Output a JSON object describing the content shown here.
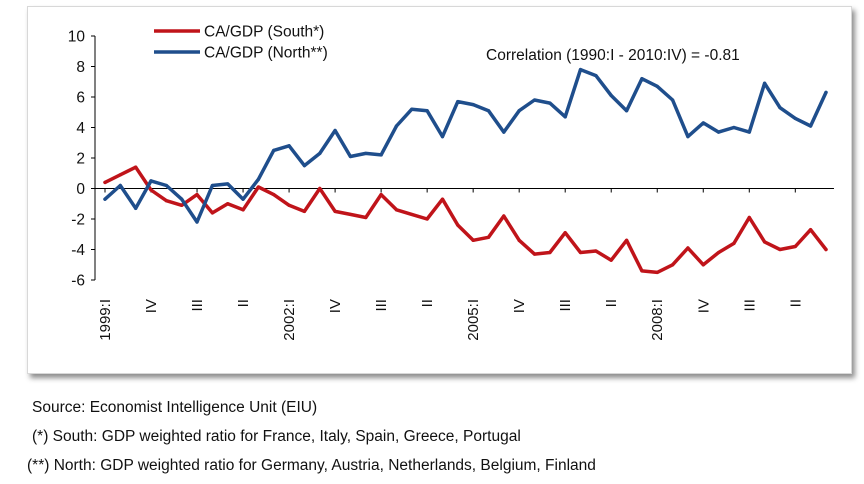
{
  "chart_data": {
    "type": "line",
    "ylim": [
      -6,
      10
    ],
    "yticks": [
      10,
      8,
      6,
      4,
      2,
      0,
      -2,
      -4,
      -6
    ],
    "x_tick_labels": [
      "1999:I",
      "IV",
      "III",
      "II",
      "2002:I",
      "IV",
      "III",
      "II",
      "2005:I",
      "IV",
      "III",
      "II",
      "2008:I",
      "IV",
      "III",
      "II"
    ],
    "annotation": "Correlation (1990:I - 2010:IV) = -0.81",
    "legend_position": "top-left",
    "grid": false,
    "series": [
      {
        "name": "CA/GDP (South*)",
        "color": "#c0141a",
        "values": [
          0.4,
          0.9,
          1.4,
          -0.1,
          -0.8,
          -1.1,
          -0.4,
          -1.6,
          -1.0,
          -1.4,
          0.1,
          -0.4,
          -1.1,
          -1.5,
          0.0,
          -1.5,
          -1.7,
          -1.9,
          -0.4,
          -1.4,
          -1.7,
          -2.0,
          -0.7,
          -2.4,
          -3.4,
          -3.2,
          -1.8,
          -3.4,
          -4.3,
          -4.2,
          -2.9,
          -4.2,
          -4.1,
          -4.7,
          -3.4,
          -5.4,
          -5.5,
          -5.0,
          -3.9,
          -5.0,
          -4.2,
          -3.6,
          -1.9,
          -3.5,
          -4.0,
          -3.8,
          -2.7,
          -4.0
        ]
      },
      {
        "name": "CA/GDP (North**)",
        "color": "#1f4e8c",
        "values": [
          -0.7,
          0.2,
          -1.3,
          0.5,
          0.2,
          -0.7,
          -2.2,
          0.2,
          0.3,
          -0.7,
          0.6,
          2.5,
          2.8,
          1.5,
          2.3,
          3.8,
          2.1,
          2.3,
          2.2,
          4.1,
          5.2,
          5.1,
          3.4,
          5.7,
          5.5,
          5.1,
          3.7,
          5.1,
          5.8,
          5.6,
          4.7,
          7.8,
          7.4,
          6.1,
          5.1,
          7.2,
          6.7,
          5.8,
          3.4,
          4.3,
          3.7,
          4.0,
          3.7,
          6.9,
          5.3,
          4.6,
          4.1,
          6.3
        ]
      }
    ]
  },
  "notes": {
    "source": "Source: Economist Intelligence Unit (EIU)",
    "south_def": "(*) South: GDP weighted ratio for France, Italy, Spain, Greece, Portugal",
    "north_def": "(**) North: GDP weighted ratio for Germany, Austria, Netherlands, Belgium, Finland"
  }
}
